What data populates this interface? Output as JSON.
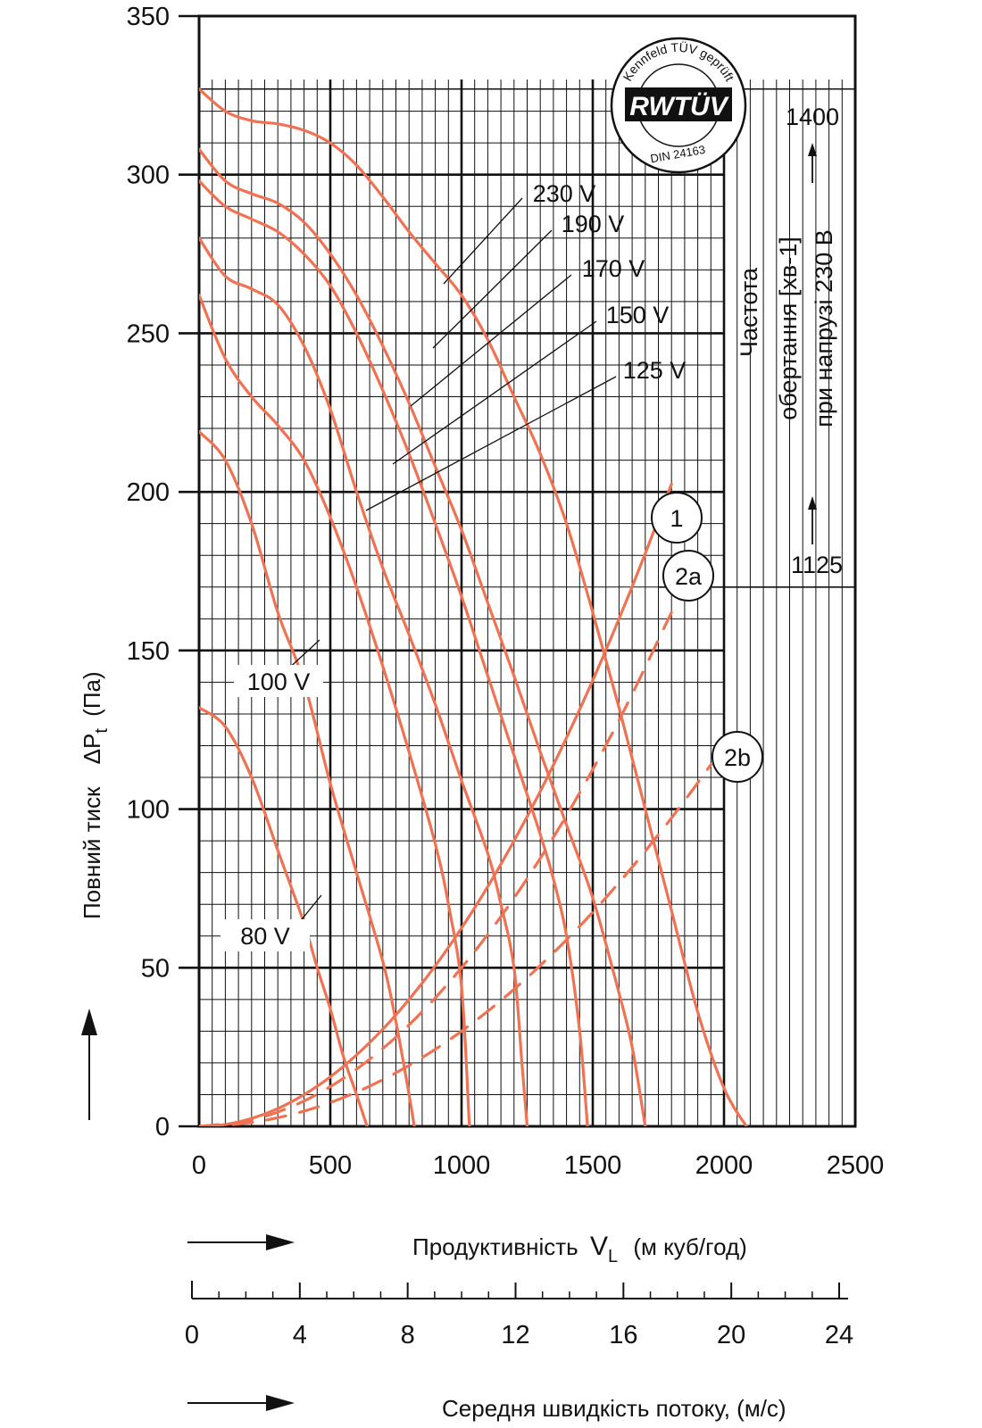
{
  "chart_data": {
    "type": "line",
    "ylabel_prefix": "Повний тиск",
    "ylabel_symbol": "ΔP",
    "ylabel_sub": "t",
    "ylabel_unit": "(Па)",
    "xlabel_prefix": "Продуктивність",
    "xlabel_symbol": "V",
    "xlabel_sub": "L",
    "xlabel_unit": "(м куб/год)",
    "x2label": "Середня швидкість потоку,  (м/с)",
    "xlim": [
      0,
      2500
    ],
    "ylim": [
      0,
      350
    ],
    "x_ticks": [
      "0",
      "500",
      "1000",
      "1500",
      "2000",
      "2500"
    ],
    "y_ticks": [
      "0",
      "50",
      "100",
      "150",
      "200",
      "250",
      "300",
      "350"
    ],
    "x2_ticks": [
      "0",
      "4",
      "8",
      "12",
      "16",
      "20",
      "24"
    ],
    "x2lim": [
      0,
      24
    ],
    "rpm_label": "Частота обертання [хв-1] при напрузі 230 В",
    "rpm_label_lines": [
      "Частота",
      "обертання [хв-1]",
      "при напрузі 230 В"
    ],
    "rpm_values": [
      "1400",
      "1125"
    ],
    "rpm_levels_pa": [
      327,
      170
    ],
    "curve_color": "#f07252",
    "series": [
      {
        "name": "230 V",
        "style": "solid",
        "points": [
          [
            0,
            327
          ],
          [
            100,
            320
          ],
          [
            200,
            317
          ],
          [
            300,
            316
          ],
          [
            400,
            314
          ],
          [
            500,
            310
          ],
          [
            600,
            303
          ],
          [
            700,
            293
          ],
          [
            800,
            282
          ],
          [
            900,
            272
          ],
          [
            1000,
            262
          ],
          [
            1100,
            248
          ],
          [
            1200,
            230
          ],
          [
            1300,
            212
          ],
          [
            1400,
            190
          ],
          [
            1500,
            162
          ],
          [
            1600,
            132
          ],
          [
            1700,
            100
          ],
          [
            1800,
            68
          ],
          [
            1900,
            36
          ],
          [
            2000,
            12
          ],
          [
            2085,
            0
          ]
        ]
      },
      {
        "name": "190 V",
        "style": "solid",
        "points": [
          [
            0,
            308
          ],
          [
            100,
            298
          ],
          [
            200,
            294
          ],
          [
            300,
            291
          ],
          [
            400,
            285
          ],
          [
            500,
            275
          ],
          [
            600,
            262
          ],
          [
            700,
            246
          ],
          [
            800,
            228
          ],
          [
            900,
            208
          ],
          [
            1000,
            188
          ],
          [
            1100,
            165
          ],
          [
            1200,
            142
          ],
          [
            1300,
            118
          ],
          [
            1400,
            95
          ],
          [
            1500,
            72
          ],
          [
            1600,
            42
          ],
          [
            1650,
            25
          ],
          [
            1700,
            0
          ]
        ]
      },
      {
        "name": "170 V",
        "style": "solid",
        "points": [
          [
            0,
            298
          ],
          [
            100,
            290
          ],
          [
            200,
            286
          ],
          [
            300,
            282
          ],
          [
            400,
            275
          ],
          [
            500,
            265
          ],
          [
            600,
            250
          ],
          [
            700,
            232
          ],
          [
            800,
            212
          ],
          [
            900,
            190
          ],
          [
            1000,
            167
          ],
          [
            1100,
            142
          ],
          [
            1200,
            117
          ],
          [
            1300,
            92
          ],
          [
            1350,
            78
          ],
          [
            1400,
            60
          ],
          [
            1450,
            30
          ],
          [
            1480,
            0
          ]
        ]
      },
      {
        "name": "150 V",
        "style": "solid",
        "points": [
          [
            0,
            280
          ],
          [
            100,
            268
          ],
          [
            200,
            264
          ],
          [
            300,
            259
          ],
          [
            400,
            246
          ],
          [
            500,
            226
          ],
          [
            600,
            200
          ],
          [
            700,
            176
          ],
          [
            800,
            155
          ],
          [
            900,
            133
          ],
          [
            1000,
            109
          ],
          [
            1100,
            86
          ],
          [
            1150,
            70
          ],
          [
            1200,
            50
          ],
          [
            1230,
            20
          ],
          [
            1250,
            0
          ]
        ]
      },
      {
        "name": "125 V",
        "style": "solid",
        "points": [
          [
            0,
            262
          ],
          [
            100,
            242
          ],
          [
            200,
            230
          ],
          [
            300,
            221
          ],
          [
            400,
            210
          ],
          [
            500,
            192
          ],
          [
            600,
            170
          ],
          [
            700,
            145
          ],
          [
            800,
            118
          ],
          [
            900,
            89
          ],
          [
            950,
            70
          ],
          [
            1000,
            44
          ],
          [
            1030,
            0
          ]
        ]
      },
      {
        "name": "100 V",
        "style": "solid",
        "points": [
          [
            0,
            219
          ],
          [
            100,
            210
          ],
          [
            200,
            190
          ],
          [
            300,
            162
          ],
          [
            400,
            140
          ],
          [
            500,
            108
          ],
          [
            600,
            80
          ],
          [
            700,
            52
          ],
          [
            750,
            33
          ],
          [
            800,
            10
          ],
          [
            820,
            0
          ]
        ]
      },
      {
        "name": "80 V",
        "style": "solid",
        "points": [
          [
            0,
            132
          ],
          [
            100,
            126
          ],
          [
            200,
            110
          ],
          [
            300,
            87
          ],
          [
            400,
            64
          ],
          [
            450,
            50
          ],
          [
            500,
            37
          ],
          [
            550,
            22
          ],
          [
            600,
            10
          ],
          [
            640,
            0
          ]
        ]
      },
      {
        "name": "1",
        "style": "solid",
        "points": [
          [
            0,
            0
          ],
          [
            100,
            0.6
          ],
          [
            200,
            2.5
          ],
          [
            300,
            5.6
          ],
          [
            400,
            10
          ],
          [
            500,
            15.6
          ],
          [
            600,
            22.5
          ],
          [
            700,
            30.6
          ],
          [
            800,
            40
          ],
          [
            900,
            50.6
          ],
          [
            1000,
            62.5
          ],
          [
            1100,
            75.6
          ],
          [
            1200,
            90
          ],
          [
            1300,
            105.6
          ],
          [
            1400,
            122.5
          ],
          [
            1500,
            140.6
          ],
          [
            1600,
            160
          ],
          [
            1700,
            180.6
          ],
          [
            1800,
            202.5
          ]
        ]
      },
      {
        "name": "2a",
        "style": "dashed",
        "points": [
          [
            0,
            0
          ],
          [
            200,
            2
          ],
          [
            400,
            8
          ],
          [
            600,
            18
          ],
          [
            800,
            32
          ],
          [
            1000,
            50
          ],
          [
            1200,
            72
          ],
          [
            1400,
            98
          ],
          [
            1600,
            128
          ],
          [
            1800,
            162
          ]
        ]
      },
      {
        "name": "2b",
        "style": "dashed",
        "points": [
          [
            0,
            0
          ],
          [
            200,
            1.2
          ],
          [
            400,
            4.8
          ],
          [
            600,
            10.8
          ],
          [
            800,
            19.2
          ],
          [
            1000,
            30
          ],
          [
            1200,
            43.2
          ],
          [
            1400,
            58.8
          ],
          [
            1600,
            76.8
          ],
          [
            1800,
            97.2
          ],
          [
            1950,
            114
          ]
        ]
      }
    ],
    "curve_labels": [
      {
        "name": "230 V",
        "text": "230 V"
      },
      {
        "name": "190 V",
        "text": "190 V"
      },
      {
        "name": "170 V",
        "text": "170 V"
      },
      {
        "name": "150 V",
        "text": "150 V"
      },
      {
        "name": "125 V",
        "text": "125 V"
      },
      {
        "name": "100 V",
        "text": "100 V"
      },
      {
        "name": "80 V",
        "text": "80 V"
      }
    ],
    "circle_labels": [
      {
        "name": "1",
        "text": "1"
      },
      {
        "name": "2a",
        "text": "2a"
      },
      {
        "name": "2b",
        "text": "2b"
      }
    ],
    "grid": true
  },
  "seal": {
    "ring_text": "Kennfeld TÜV geprüft",
    "logo": "RWTÜV",
    "standard": "DIN 24163"
  }
}
